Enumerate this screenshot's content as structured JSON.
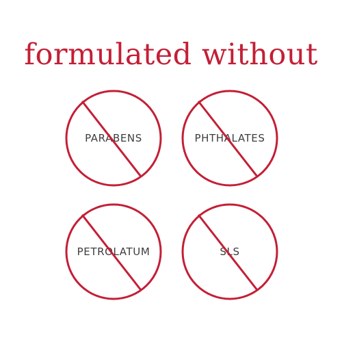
{
  "headline": "formulated without",
  "colors": {
    "accent": "#c31f36",
    "label": "#3d3d3d",
    "background": "#ffffff"
  },
  "badges": [
    {
      "label": "PARABENS",
      "icon": "prohibited-icon"
    },
    {
      "label": "PHTHALATES",
      "icon": "prohibited-icon"
    },
    {
      "label": "PETROLATUM",
      "icon": "prohibited-icon"
    },
    {
      "label": "SLS",
      "icon": "prohibited-icon"
    }
  ]
}
